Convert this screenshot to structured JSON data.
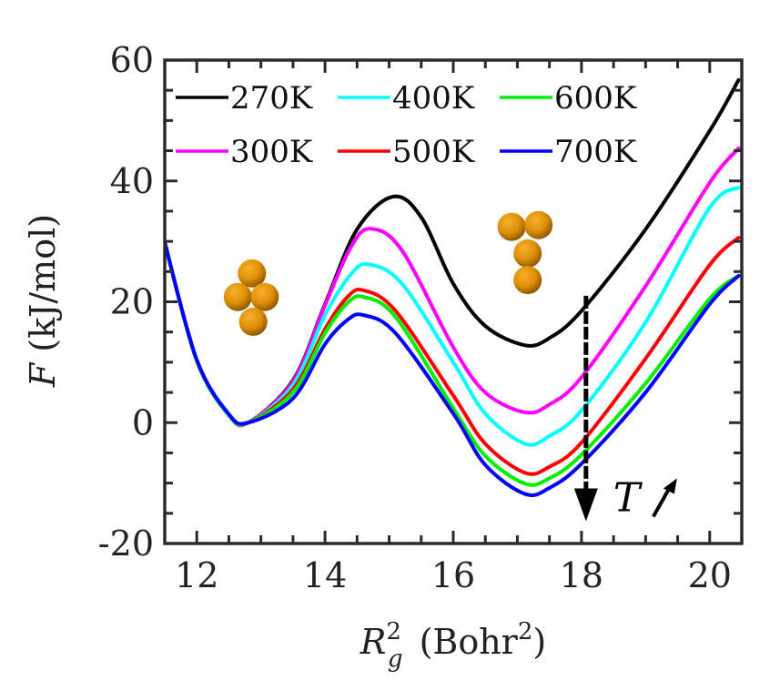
{
  "chart_data": {
    "type": "line",
    "title": "",
    "xlabel": {
      "symbol": "R",
      "superscript": "2",
      "subscript": "g",
      "unit_prefix": "(Bohr",
      "unit_superscript": "2",
      "unit_suffix": ")"
    },
    "ylabel": {
      "symbol": "F",
      "unit": "(kJ/mol)"
    },
    "xlim": [
      11.5,
      20.5
    ],
    "ylim": [
      -20,
      60
    ],
    "xticks": [
      12,
      14,
      16,
      18,
      20
    ],
    "xtick_labels": [
      "12",
      "14",
      "16",
      "18",
      "20"
    ],
    "yticks": [
      -20,
      0,
      20,
      40,
      60
    ],
    "ytick_labels": [
      "-20",
      "0",
      "20",
      "40",
      "60"
    ],
    "x_minor_step": 0.5,
    "y_minor_step": 5,
    "grid": false,
    "legend": {
      "placement": "top-left",
      "columns": 3
    },
    "series": [
      {
        "name": "270K",
        "color": "#000000",
        "x": [
          11.5,
          12.0,
          12.5,
          12.8,
          13.5,
          14.0,
          14.5,
          15.06,
          15.5,
          16.0,
          16.5,
          17.12,
          17.5,
          18.0,
          19.0,
          20.0,
          20.45
        ],
        "y": [
          29.8,
          10.3,
          1.3,
          0.0,
          7.0,
          19.6,
          32.0,
          37.4,
          34.0,
          23.0,
          16.0,
          12.8,
          14.0,
          18.5,
          32.0,
          48.3,
          56.7
        ]
      },
      {
        "name": "300K",
        "color": "#ff00ff",
        "x": [
          11.5,
          12.0,
          12.5,
          12.8,
          13.5,
          14.0,
          14.4,
          14.71,
          15.2,
          16.0,
          16.5,
          17.12,
          17.5,
          18.0,
          19.0,
          20.0,
          20.45
        ],
        "y": [
          29.8,
          10.2,
          1.2,
          0.0,
          6.8,
          19.4,
          29.0,
          32.1,
          28.5,
          12.5,
          5.0,
          1.7,
          3.0,
          7.5,
          22.6,
          39.7,
          45.4
        ]
      },
      {
        "name": "400K",
        "color": "#00ffff",
        "x": [
          11.5,
          12.0,
          12.5,
          12.8,
          13.5,
          14.0,
          14.4,
          14.68,
          15.2,
          16.0,
          16.5,
          17.12,
          17.5,
          18.0,
          19.0,
          20.0,
          20.45
        ],
        "y": [
          29.8,
          10.2,
          1.2,
          0.0,
          6.2,
          17.8,
          24.5,
          26.2,
          23.0,
          10.0,
          1.5,
          -3.5,
          -2.2,
          2.0,
          16.6,
          35.6,
          38.9
        ]
      },
      {
        "name": "500K",
        "color": "#ff0000",
        "x": [
          11.5,
          12.0,
          12.5,
          12.8,
          13.5,
          14.0,
          14.35,
          14.6,
          15.1,
          16.0,
          16.5,
          17.12,
          17.5,
          18.0,
          19.0,
          20.0,
          20.45
        ],
        "y": [
          29.8,
          10.3,
          1.3,
          0.0,
          5.5,
          15.5,
          20.8,
          21.9,
          18.5,
          4.5,
          -3.5,
          -8.3,
          -7.3,
          -3.3,
          10.6,
          26.1,
          30.6
        ]
      },
      {
        "name": "600K",
        "color": "#00ee00",
        "x": [
          11.5,
          12.0,
          12.5,
          12.8,
          13.5,
          14.0,
          14.35,
          14.6,
          15.1,
          16.0,
          16.5,
          17.12,
          17.5,
          18.0,
          19.0,
          20.0,
          20.45
        ],
        "y": [
          30.0,
          10.3,
          1.3,
          0.0,
          5.0,
          14.8,
          19.8,
          20.8,
          17.5,
          2.4,
          -5.5,
          -10.1,
          -9.2,
          -5.3,
          6.5,
          20.5,
          24.3
        ]
      },
      {
        "name": "700K",
        "color": "#0000ff",
        "x": [
          11.5,
          12.0,
          12.5,
          12.8,
          13.5,
          14.0,
          14.35,
          14.6,
          15.1,
          16.0,
          16.5,
          17.12,
          17.5,
          18.0,
          19.0,
          20.0,
          20.45
        ],
        "y": [
          29.8,
          10.4,
          1.4,
          0.0,
          4.0,
          13.0,
          17.0,
          17.8,
          14.8,
          1.5,
          -7.0,
          -11.8,
          -10.8,
          -6.8,
          5.0,
          19.6,
          24.3
        ]
      }
    ],
    "annotations": {
      "arrow": {
        "x": 18.07,
        "y_from": 21,
        "y_to": -16,
        "style": "dashed",
        "color": "#000000"
      },
      "label": "T",
      "label_suffix_icon": "up-right-arrow",
      "cluster_colors": {
        "base": "#e0900a",
        "highlight": "#f5b02a",
        "shadow": "#8a5200"
      },
      "clusters": [
        {
          "name": "rhombus-cluster",
          "atoms": [
            [
              12.86,
              24.7
            ],
            [
              12.64,
              20.8
            ],
            [
              13.06,
              20.8
            ],
            [
              12.88,
              16.7
            ]
          ]
        },
        {
          "name": "y-shaped-cluster",
          "atoms": [
            [
              16.91,
              32.4
            ],
            [
              17.33,
              32.7
            ],
            [
              17.16,
              28.0
            ],
            [
              17.16,
              23.6
            ]
          ]
        }
      ]
    }
  }
}
